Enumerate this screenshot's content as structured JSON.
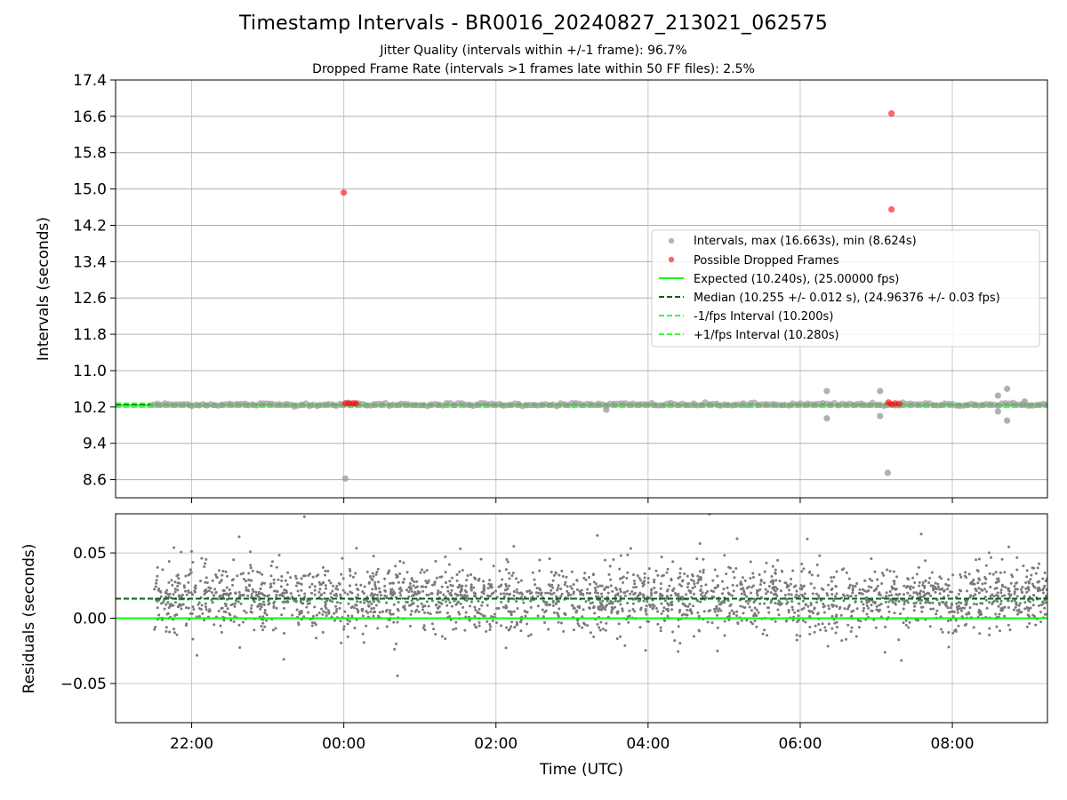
{
  "figure": {
    "title": "Timestamp Intervals - BR0016_20240827_213021_062575",
    "subtitle_jitter": "Jitter Quality (intervals within +/-1 frame): 96.7%",
    "subtitle_dropped": "Dropped Frame Rate (intervals >1 frames late within 50 FF files): 2.5%",
    "xlabel": "Time (UTC)",
    "x_tick_labels": [
      "22:00",
      "00:00",
      "02:00",
      "04:00",
      "06:00",
      "08:00"
    ]
  },
  "colors": {
    "intervals": "#9e9e9e",
    "dropped": "#ff0000",
    "expected": "#00ff00",
    "median": "#006400",
    "fps_bounds": "#32ff32",
    "residuals": "#7a7a7a",
    "grid": "#b0b0b0"
  },
  "chart_data": [
    {
      "type": "scatter",
      "panel": "top",
      "ylabel": "Intervals (seconds)",
      "ylim": [
        8.2,
        17.4
      ],
      "y_ticks": [
        8.6,
        9.4,
        10.2,
        11.0,
        11.8,
        12.6,
        13.4,
        14.2,
        15.0,
        15.8,
        16.6,
        17.4
      ],
      "y_tick_labels": [
        "8.6",
        "9.4",
        "10.2",
        "11.0",
        "11.8",
        "12.6",
        "13.4",
        "14.2",
        "15.0",
        "15.8",
        "16.6",
        "17.4"
      ],
      "x_range_hours": [
        -3.0,
        9.25
      ],
      "x_ticks_hours": [
        -2,
        0,
        2,
        4,
        6,
        8
      ],
      "grid": true,
      "legend_position": "center-right",
      "legend": [
        {
          "label": "Intervals, max (16.663s), min (8.624s)",
          "marker": "dot",
          "color": "#9e9e9e"
        },
        {
          "label": "Possible Dropped Frames",
          "marker": "dot",
          "color": "#ff0000"
        },
        {
          "label": "Expected (10.240s), (25.00000 fps)",
          "marker": "solid",
          "color": "#00ff00"
        },
        {
          "label": "Median (10.255 +/- 0.012 s), (24.96376 +/- 0.03 fps)",
          "marker": "dashed",
          "color": "#006400"
        },
        {
          "label": "-1/fps Interval (10.200s)",
          "marker": "dashed",
          "color": "#32ff32"
        },
        {
          "label": "+1/fps Interval (10.280s)",
          "marker": "dashed",
          "color": "#32ff32"
        }
      ],
      "lines": {
        "expected": 10.24,
        "median": 10.255,
        "minus_one_fps": 10.2,
        "plus_one_fps": 10.28
      },
      "series": [
        {
          "name": "Intervals, max (16.663s), min (8.624s)",
          "band": {
            "x_start": -2.5,
            "x_end": 9.25,
            "center": 10.255,
            "spread": 0.03
          },
          "outliers": [
            [
              0.02,
              8.624
            ],
            [
              3.45,
              10.14
            ],
            [
              6.35,
              10.55
            ],
            [
              6.35,
              9.95
            ],
            [
              7.05,
              10.55
            ],
            [
              7.05,
              10.0
            ],
            [
              7.15,
              8.75
            ],
            [
              8.6,
              10.45
            ],
            [
              8.6,
              10.1
            ],
            [
              8.72,
              10.6
            ],
            [
              8.72,
              9.9
            ],
            [
              8.95,
              10.32
            ]
          ]
        },
        {
          "name": "Possible Dropped Frames",
          "points": [
            [
              0.0,
              14.92
            ],
            [
              7.2,
              16.663
            ],
            [
              7.2,
              14.55
            ],
            [
              0.02,
              10.28
            ],
            [
              0.07,
              10.28
            ],
            [
              0.12,
              10.28
            ],
            [
              0.16,
              10.28
            ],
            [
              7.16,
              10.3
            ],
            [
              7.2,
              10.26
            ],
            [
              7.25,
              10.28
            ],
            [
              7.3,
              10.27
            ]
          ]
        }
      ]
    },
    {
      "type": "scatter",
      "panel": "bottom",
      "ylabel": "Residuals (seconds)",
      "ylim": [
        -0.08,
        0.08
      ],
      "y_ticks": [
        -0.05,
        0.0,
        0.05
      ],
      "y_tick_labels": [
        "−0.05",
        "0.00",
        "0.05"
      ],
      "x_range_hours": [
        -3.0,
        9.25
      ],
      "x_ticks_hours": [
        -2,
        0,
        2,
        4,
        6,
        8
      ],
      "grid": true,
      "lines": {
        "zero": 0.0,
        "median_offset": 0.015
      },
      "series": [
        {
          "name": "Residuals",
          "distribution": {
            "x_start": -2.5,
            "x_end": 9.25,
            "count": 2500,
            "mean": 0.015,
            "std": 0.012
          }
        }
      ]
    }
  ]
}
